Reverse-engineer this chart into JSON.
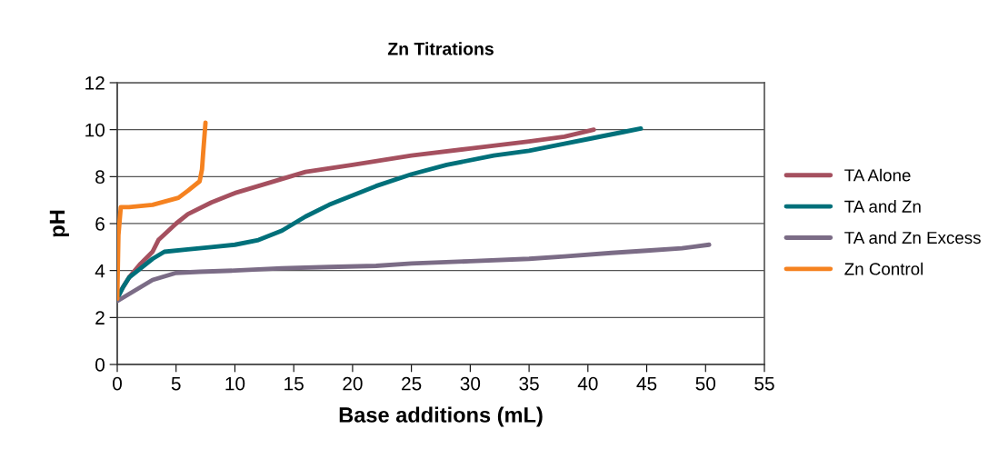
{
  "chart_data": {
    "type": "line",
    "title": "Zn Titrations",
    "xlabel": "Base additions (mL)",
    "ylabel": "pH",
    "xlim": [
      0,
      55
    ],
    "xticks": [
      0,
      5,
      10,
      15,
      20,
      25,
      30,
      35,
      40,
      45,
      50,
      55
    ],
    "ylim": [
      0,
      12
    ],
    "yticks": [
      0,
      2,
      4,
      6,
      8,
      10,
      12
    ],
    "grid": "y",
    "legend": "right",
    "marker": "none",
    "line_style": "solid",
    "series": [
      {
        "name": "TA Alone",
        "color": "#a5505f",
        "x": [
          0,
          1,
          2,
          3,
          3.5,
          5,
          6,
          8,
          10,
          12,
          14,
          16,
          20,
          25,
          30,
          35,
          38,
          40.5
        ],
        "values": [
          2.9,
          3.7,
          4.3,
          4.8,
          5.3,
          6.0,
          6.4,
          6.9,
          7.3,
          7.6,
          7.9,
          8.2,
          8.5,
          8.9,
          9.2,
          9.5,
          9.7,
          10.0
        ]
      },
      {
        "name": "TA and Zn",
        "color": "#00707a",
        "x": [
          0,
          0.5,
          1,
          2,
          3,
          4,
          6,
          8,
          10,
          12,
          14,
          16,
          18,
          20,
          22,
          25,
          28,
          32,
          35,
          38,
          40,
          43,
          44.5
        ],
        "values": [
          2.8,
          3.3,
          3.7,
          4.1,
          4.5,
          4.8,
          4.9,
          5.0,
          5.1,
          5.3,
          5.7,
          6.3,
          6.8,
          7.2,
          7.6,
          8.1,
          8.5,
          8.9,
          9.1,
          9.4,
          9.6,
          9.9,
          10.05
        ]
      },
      {
        "name": "TA and Zn Excess",
        "color": "#7b6c86",
        "x": [
          0,
          1,
          2,
          3,
          5,
          7,
          10,
          14,
          18,
          22,
          25,
          30,
          35,
          38,
          42,
          45,
          48,
          50.3
        ],
        "values": [
          2.7,
          3.0,
          3.3,
          3.6,
          3.9,
          3.95,
          4.0,
          4.1,
          4.15,
          4.2,
          4.3,
          4.4,
          4.5,
          4.6,
          4.75,
          4.85,
          4.95,
          5.1
        ]
      },
      {
        "name": "Zn Control",
        "color": "#f58220",
        "x": [
          0,
          0.1,
          0.3,
          1,
          3,
          5.2,
          6,
          7,
          7.2,
          7.3,
          7.5
        ],
        "values": [
          2.8,
          5.5,
          6.7,
          6.7,
          6.8,
          7.1,
          7.4,
          7.8,
          8.3,
          9.0,
          10.3
        ]
      }
    ]
  }
}
